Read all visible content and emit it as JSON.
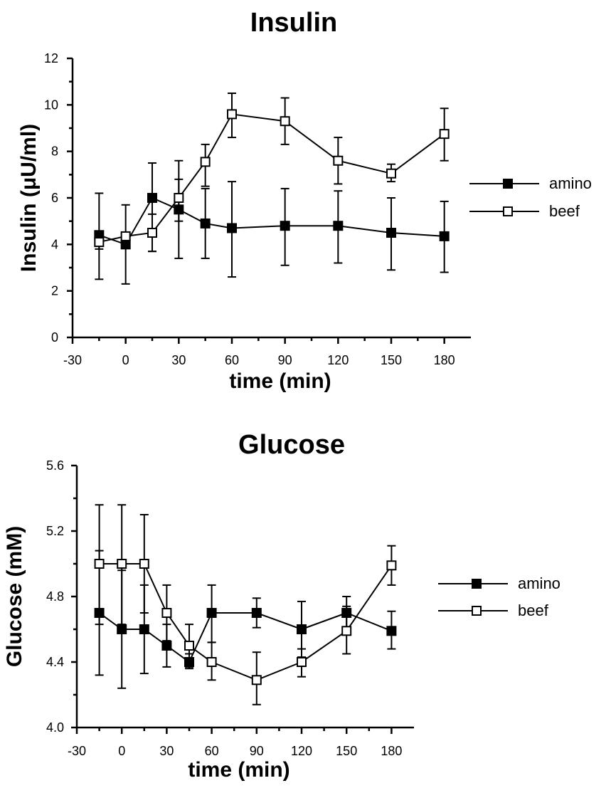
{
  "chart_data": [
    {
      "type": "line",
      "title": "Insulin",
      "xlabel": "time (min)",
      "ylabel": "Insulin (μU/ml)",
      "xlim": [
        -30,
        195
      ],
      "ylim": [
        0,
        12
      ],
      "x_ticks": [
        "-30",
        "0",
        "30",
        "60",
        "90",
        "120",
        "150",
        "180"
      ],
      "y_ticks": [
        "0",
        "2",
        "4",
        "6",
        "8",
        "10",
        "12"
      ],
      "legend_position": "right",
      "series": [
        {
          "name": "amino",
          "marker": "filled-square",
          "x": [
            -15,
            0,
            15,
            30,
            45,
            60,
            90,
            120,
            150,
            180
          ],
          "values": [
            4.4,
            4.0,
            6.0,
            5.5,
            4.9,
            4.7,
            4.8,
            4.8,
            4.5,
            4.35
          ],
          "err_low": [
            2.5,
            2.3,
            3.7,
            3.4,
            3.4,
            2.6,
            3.1,
            3.2,
            2.9,
            2.8
          ],
          "err_high": [
            6.2,
            5.7,
            7.5,
            7.6,
            6.4,
            6.7,
            6.4,
            6.3,
            6.0,
            5.85
          ]
        },
        {
          "name": "beef",
          "marker": "open-square",
          "x": [
            -15,
            0,
            15,
            30,
            45,
            60,
            90,
            120,
            150,
            180
          ],
          "values": [
            4.1,
            4.35,
            4.5,
            6.0,
            7.55,
            9.6,
            9.3,
            7.6,
            7.05,
            8.75
          ],
          "err_low": [
            3.8,
            4.3,
            3.7,
            5.0,
            6.5,
            8.6,
            8.3,
            6.6,
            6.7,
            7.6
          ],
          "err_high": [
            4.1,
            4.5,
            5.3,
            6.8,
            8.3,
            10.5,
            10.3,
            8.6,
            7.45,
            9.85
          ]
        }
      ]
    },
    {
      "type": "line",
      "title": "Glucose",
      "xlabel": "time (min)",
      "ylabel": "Glucose (mM)",
      "xlim": [
        -30,
        195
      ],
      "ylim": [
        4.0,
        5.6
      ],
      "x_ticks": [
        "-30",
        "0",
        "30",
        "60",
        "90",
        "120",
        "150",
        "180"
      ],
      "y_ticks": [
        "4.0",
        "4.4",
        "4.8",
        "5.2",
        "5.6"
      ],
      "legend_position": "right",
      "series": [
        {
          "name": "amino",
          "marker": "filled-square",
          "x": [
            -15,
            0,
            15,
            30,
            45,
            60,
            90,
            120,
            150,
            180
          ],
          "values": [
            4.7,
            4.6,
            4.6,
            4.5,
            4.4,
            4.7,
            4.7,
            4.6,
            4.7,
            4.59
          ],
          "err_low": [
            4.32,
            4.24,
            4.33,
            4.37,
            4.36,
            4.52,
            4.61,
            4.43,
            4.6,
            4.48
          ],
          "err_high": [
            5.08,
            4.96,
            4.87,
            4.63,
            4.45,
            4.87,
            4.79,
            4.77,
            4.8,
            4.71
          ]
        },
        {
          "name": "beef",
          "marker": "open-square",
          "x": [
            -15,
            0,
            15,
            30,
            45,
            60,
            90,
            120,
            150,
            180
          ],
          "values": [
            5.0,
            5.0,
            5.0,
            4.7,
            4.5,
            4.4,
            4.29,
            4.4,
            4.59,
            4.99
          ],
          "err_low": [
            4.63,
            4.63,
            4.7,
            4.53,
            4.37,
            4.29,
            4.14,
            4.31,
            4.45,
            4.87
          ],
          "err_high": [
            5.36,
            5.36,
            5.3,
            4.87,
            4.63,
            4.52,
            4.46,
            4.48,
            4.74,
            5.11
          ]
        }
      ]
    }
  ]
}
